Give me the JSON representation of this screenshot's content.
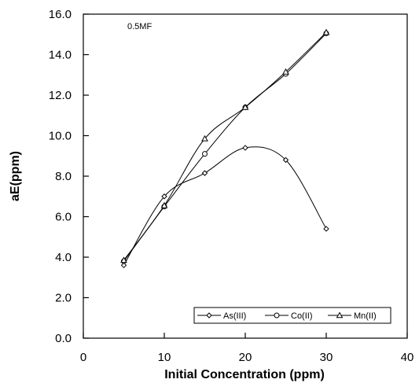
{
  "chart_data": {
    "type": "line",
    "title": "",
    "xlabel": "Initial Concentration (ppm)",
    "ylabel": "aE(ppm)",
    "xlim": [
      0,
      40
    ],
    "ylim": [
      0.0,
      16.0
    ],
    "x_ticks": [
      "0",
      "10",
      "20",
      "30",
      "40"
    ],
    "y_ticks": [
      "0.0",
      "2.0",
      "4.0",
      "6.0",
      "8.0",
      "10.0",
      "12.0",
      "14.0",
      "16.0"
    ],
    "annotation": "0.5MF",
    "grid": false,
    "smooth": true,
    "legend_position": "bottom-right",
    "x": [
      5,
      10,
      15,
      20,
      25,
      30
    ],
    "series": [
      {
        "name": "As(III)",
        "marker": "diamond",
        "values": [
          3.6,
          7.0,
          8.15,
          9.4,
          8.8,
          5.4
        ]
      },
      {
        "name": "Co(II)",
        "marker": "circle",
        "values": [
          3.8,
          6.5,
          9.1,
          11.4,
          13.05,
          15.05
        ]
      },
      {
        "name": "Mn(II)",
        "marker": "triangle",
        "values": [
          3.85,
          6.55,
          9.85,
          11.4,
          13.15,
          15.1
        ]
      }
    ],
    "colors": {
      "line": "#000000",
      "marker_fill": "#ffffff"
    }
  }
}
